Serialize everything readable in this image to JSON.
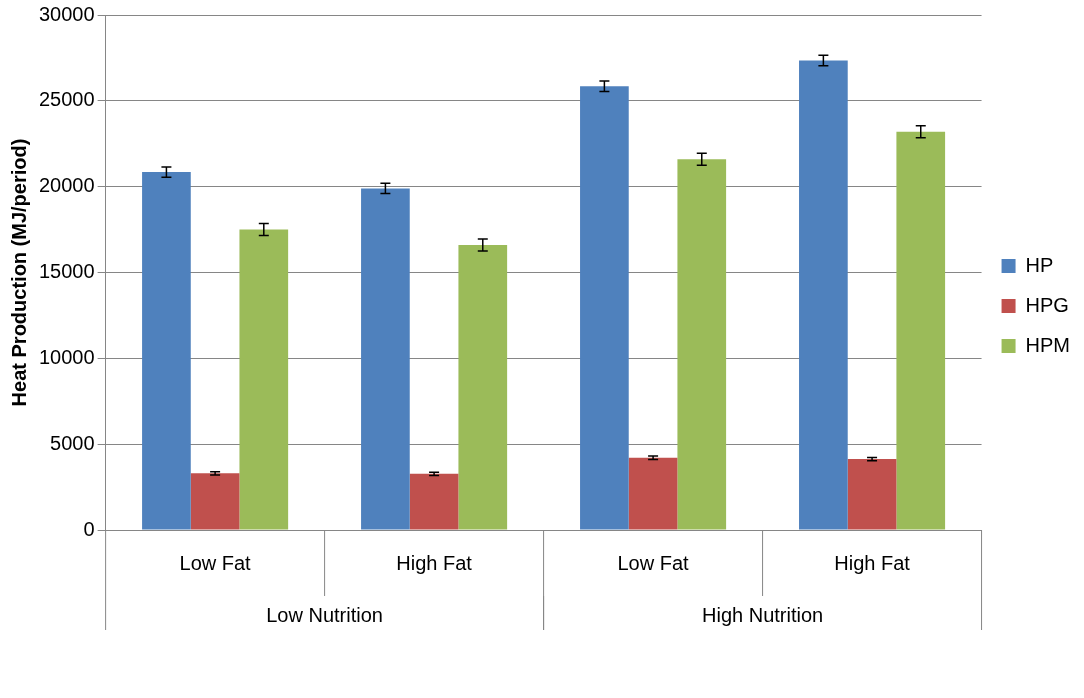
{
  "chart_data": {
    "type": "bar",
    "ylabel": "Heat Production (MJ/period)",
    "categories": [
      "Low Fat",
      "High Fat",
      "Low Fat",
      "High Fat"
    ],
    "series": [
      {
        "name": "HP",
        "color": "#4f81bd",
        "values": [
          20850,
          19900,
          25850,
          27350
        ],
        "errors": [
          300,
          300,
          300,
          300
        ]
      },
      {
        "name": "HPG",
        "color": "#c0504d",
        "values": [
          3300,
          3270,
          4210,
          4130
        ],
        "errors": [
          100,
          100,
          100,
          100
        ]
      },
      {
        "name": "HPM",
        "color": "#9bbb59",
        "values": [
          17500,
          16600,
          21600,
          23200
        ],
        "errors": [
          350,
          350,
          350,
          350
        ]
      }
    ],
    "annotations": [
      "Low Nutrition",
      "High Nutrition"
    ],
    "ylim": [
      0,
      30000
    ],
    "yticks": [
      0,
      5000,
      10000,
      15000,
      20000,
      25000,
      30000
    ],
    "grid": "y",
    "legend": "right"
  }
}
